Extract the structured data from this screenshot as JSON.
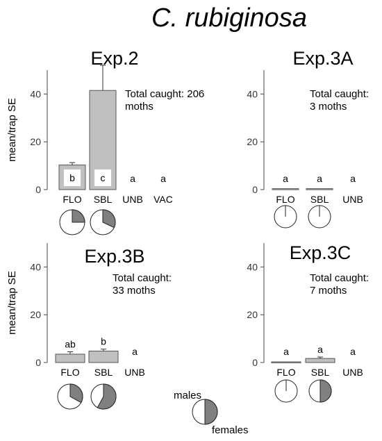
{
  "figure": {
    "title": "C. rubiginosa",
    "colors": {
      "bar": "#c0c0c0",
      "bar_edge": "#555555",
      "pie_female": "#808080",
      "pie_male": "#ffffff",
      "axis": "#444444"
    },
    "legend": {
      "males": "males",
      "females": "females",
      "females_fraction": 0.5
    }
  },
  "chart_data": [
    {
      "type": "bar",
      "title": "Exp.2",
      "ylabel": "mean/trap SE",
      "ylim": [
        0,
        50
      ],
      "yticks": [
        0,
        20,
        40
      ],
      "categories": [
        "FLO",
        "SBL",
        "UNB",
        "VAC"
      ],
      "values": [
        10.3,
        41.5,
        0,
        0
      ],
      "errors": [
        1.0,
        10.5,
        0,
        0
      ],
      "letters": [
        "b",
        "c",
        "a",
        "a"
      ],
      "letters_inside_bar": true,
      "female_fractions": [
        0.25,
        0.32,
        null,
        null
      ],
      "annotation": [
        "Total caught: 206",
        "moths"
      ]
    },
    {
      "type": "bar",
      "title": "Exp.3A",
      "ylabel": "",
      "ylim": [
        0,
        50
      ],
      "yticks": [
        0,
        20,
        40
      ],
      "categories": [
        "FLO",
        "SBL",
        "UNB"
      ],
      "values": [
        0.4,
        0.4,
        0
      ],
      "errors": [
        0,
        0,
        0
      ],
      "letters": [
        "a",
        "a",
        "a"
      ],
      "letters_inside_bar": false,
      "female_fractions": [
        0.0,
        0.0,
        null
      ],
      "annotation": [
        "Total caught:",
        "3 moths"
      ]
    },
    {
      "type": "bar",
      "title": "Exp.3B",
      "ylabel": "mean/trap SE",
      "ylim": [
        0,
        50
      ],
      "yticks": [
        0,
        20,
        40
      ],
      "categories": [
        "FLO",
        "SBL",
        "UNB"
      ],
      "values": [
        3.5,
        4.8,
        0
      ],
      "errors": [
        1.0,
        0.8,
        0
      ],
      "letters": [
        "ab",
        "b",
        "a"
      ],
      "letters_inside_bar": false,
      "female_fractions": [
        0.33,
        0.58,
        null
      ],
      "annotation": [
        "Total caught:",
        "33 moths"
      ]
    },
    {
      "type": "bar",
      "title": "Exp.3C",
      "ylabel": "",
      "ylim": [
        0,
        50
      ],
      "yticks": [
        0,
        20,
        40
      ],
      "categories": [
        "FLO",
        "SBL",
        "UNB"
      ],
      "values": [
        0.3,
        1.7,
        0
      ],
      "errors": [
        0,
        0.6,
        0
      ],
      "letters": [
        "a",
        "a",
        "a"
      ],
      "letters_inside_bar": false,
      "female_fractions": [
        0.0,
        0.5,
        null
      ],
      "annotation": [
        "Total caught:",
        "7 moths"
      ]
    }
  ]
}
